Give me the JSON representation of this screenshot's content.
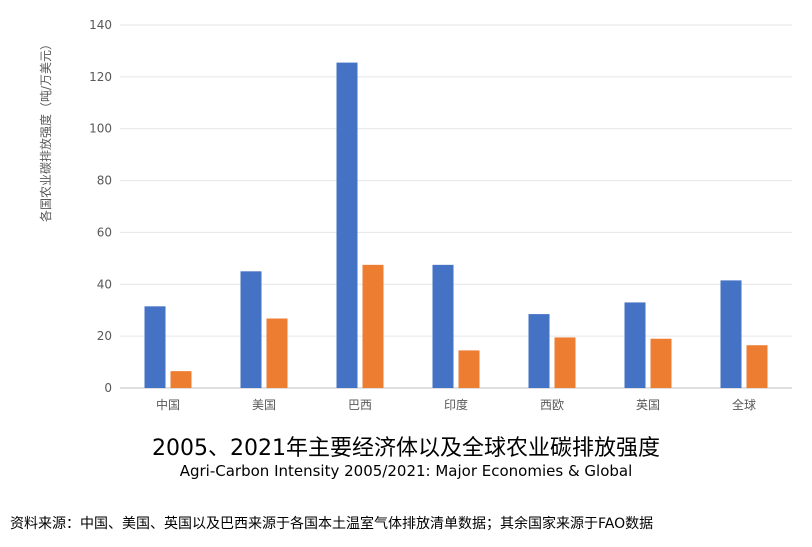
{
  "chart_data": {
    "type": "bar",
    "ylabel": "各国农业碳排放强度（吨/万美元）",
    "ylim": [
      0,
      140
    ],
    "yticks": [
      0,
      20,
      40,
      60,
      80,
      100,
      120,
      140
    ],
    "grid": true,
    "legend": "none",
    "categories": [
      "中国",
      "美国",
      "巴西",
      "印度",
      "西欧",
      "英国",
      "全球"
    ],
    "series": [
      {
        "color": "#4472C4",
        "values": [
          31.5,
          45,
          125.5,
          47.5,
          28.5,
          33,
          41.5
        ]
      },
      {
        "color": "#ED7D31",
        "values": [
          6.5,
          26.8,
          47.5,
          14.5,
          19.5,
          19,
          16.5
        ]
      }
    ]
  },
  "title": "2005、2021年主要经济体以及全球农业碳排放强度",
  "subtitle": "Agri-Carbon Intensity 2005/2021: Major Economies & Global",
  "source": "资料来源：中国、美国、英国以及巴西来源于各国本土温室气体排放清单数据；其余国家来源于FAO数据"
}
